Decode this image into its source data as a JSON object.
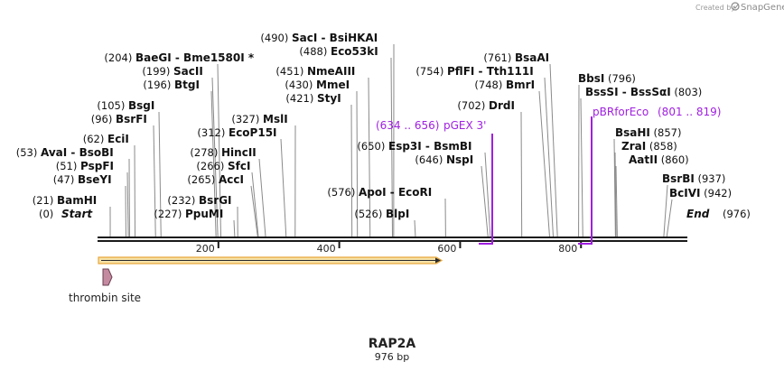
{
  "brand": {
    "prefix": "Created by",
    "name": "SnapGene"
  },
  "map": {
    "title": "RAP2A",
    "length_label": "976 bp",
    "length": 976,
    "start_label": "Start",
    "start_pos": "(0)",
    "end_label": "End",
    "end_pos": "(976)"
  },
  "ruler": {
    "ticks": [
      200,
      400,
      600,
      800
    ],
    "tick_labels": [
      "200",
      "400",
      "600",
      "800"
    ]
  },
  "sites": [
    {
      "pos": "(204)",
      "name": "BaeGI",
      "name2": "Bme1580I *",
      "bp": 204,
      "row": 0,
      "side": "L"
    },
    {
      "pos": "(199)",
      "name": "SacII",
      "bp": 199,
      "row": 1,
      "side": "L"
    },
    {
      "pos": "(196)",
      "name": "BtgI",
      "bp": 196,
      "row": 2,
      "side": "L"
    },
    {
      "pos": "(105)",
      "name": "BsgI",
      "bp": 105,
      "row": 3,
      "side": "L"
    },
    {
      "pos": "(96)",
      "name": "BsrFI",
      "bp": 96,
      "row": 4,
      "side": "L"
    },
    {
      "pos": "(62)",
      "name": "EciI",
      "bp": 62,
      "row": 5,
      "side": "L"
    },
    {
      "pos": "(53)",
      "name": "AvaI",
      "name2": "BsoBI",
      "bp": 53,
      "row": 6,
      "side": "L"
    },
    {
      "pos": "(51)",
      "name": "PspFI",
      "bp": 51,
      "row": 7,
      "side": "L"
    },
    {
      "pos": "(47)",
      "name": "BseYI",
      "bp": 47,
      "row": 8,
      "side": "L"
    },
    {
      "pos": "(21)",
      "name": "BamHI",
      "bp": 21,
      "row": 9,
      "side": "L"
    },
    {
      "pos": "(490)",
      "name": "SacI",
      "name2": "BsiHKAI",
      "bp": 490,
      "row": 0,
      "side": "L"
    },
    {
      "pos": "(488)",
      "name": "Eco53kI",
      "bp": 488,
      "row": 1,
      "side": "L"
    },
    {
      "pos": "(451)",
      "name": "NmeAIII",
      "bp": 451,
      "row": 2,
      "side": "L"
    },
    {
      "pos": "(430)",
      "name": "MmeI",
      "bp": 430,
      "row": 3,
      "side": "L"
    },
    {
      "pos": "(421)",
      "name": "StyI",
      "bp": 421,
      "row": 4,
      "side": "L"
    },
    {
      "pos": "(327)",
      "name": "MslI",
      "bp": 327,
      "row": 5,
      "side": "L"
    },
    {
      "pos": "(312)",
      "name": "EcoP15I",
      "bp": 312,
      "row": 6,
      "side": "L"
    },
    {
      "pos": "(278)",
      "name": "HincII",
      "bp": 278,
      "row": 7,
      "side": "L"
    },
    {
      "pos": "(266)",
      "name": "SfcI",
      "bp": 266,
      "row": 8,
      "side": "L"
    },
    {
      "pos": "(265)",
      "name": "AccI",
      "bp": 265,
      "row": 9,
      "side": "L"
    },
    {
      "pos": "(232)",
      "name": "BsrGI",
      "bp": 232,
      "row": 10,
      "side": "L"
    },
    {
      "pos": "(227)",
      "name": "PpuMI",
      "bp": 227,
      "row": 11,
      "side": "L"
    },
    {
      "pos": "(761)",
      "name": "BsaAI",
      "bp": 761,
      "row": 0,
      "side": "L"
    },
    {
      "pos": "(754)",
      "name": "PflFI",
      "name2": "Tth111I",
      "bp": 754,
      "row": 1,
      "side": "L"
    },
    {
      "pos": "(748)",
      "name": "BmrI",
      "bp": 748,
      "row": 2,
      "side": "L"
    },
    {
      "pos": "(702)",
      "name": "DrdI",
      "bp": 702,
      "row": 3,
      "side": "L"
    },
    {
      "pos": "(650)",
      "name": "Esp3I",
      "name2": "BsmBI",
      "bp": 650,
      "row": 4,
      "side": "L"
    },
    {
      "pos": "(646)",
      "name": "NspI",
      "bp": 646,
      "row": 5,
      "side": "L"
    },
    {
      "pos": "(576)",
      "name": "ApoI",
      "name2": "EcoRI",
      "bp": 576,
      "row": 6,
      "side": "L"
    },
    {
      "pos": "(526)",
      "name": "BlpI",
      "bp": 526,
      "row": 7,
      "side": "L"
    },
    {
      "pos": "(796)",
      "name": "BbsI",
      "bp": 796,
      "row": 0,
      "side": "R"
    },
    {
      "pos": "(803)",
      "name": "BssSI",
      "name2": "BssSαI",
      "bp": 803,
      "row": 1,
      "side": "R"
    },
    {
      "pos": "(857)",
      "name": "BsaHI",
      "bp": 857,
      "row": 2,
      "side": "R"
    },
    {
      "pos": "(858)",
      "name": "ZraI",
      "bp": 858,
      "row": 3,
      "side": "R"
    },
    {
      "pos": "(860)",
      "name": "AatII",
      "bp": 860,
      "row": 4,
      "side": "R"
    },
    {
      "pos": "(937)",
      "name": "BsrBI",
      "bp": 937,
      "row": 5,
      "side": "R"
    },
    {
      "pos": "(942)",
      "name": "BcIVI",
      "bp": 942,
      "row": 6,
      "side": "R"
    }
  ],
  "primers": [
    {
      "range": "(634 .. 656)",
      "name": "pGEX 3'",
      "start": 634,
      "end": 656
    },
    {
      "name": "pBRforEco",
      "range": "(801 .. 819)",
      "start": 801,
      "end": 819
    }
  ],
  "features": [
    {
      "name": "thrombin site",
      "color": "#c48aa0"
    }
  ],
  "colors": {
    "backbone": "#1a1a1a",
    "orf_fill": "#f7e3a8",
    "orf_stroke": "#e8a63a",
    "primer": "#a020e0"
  }
}
